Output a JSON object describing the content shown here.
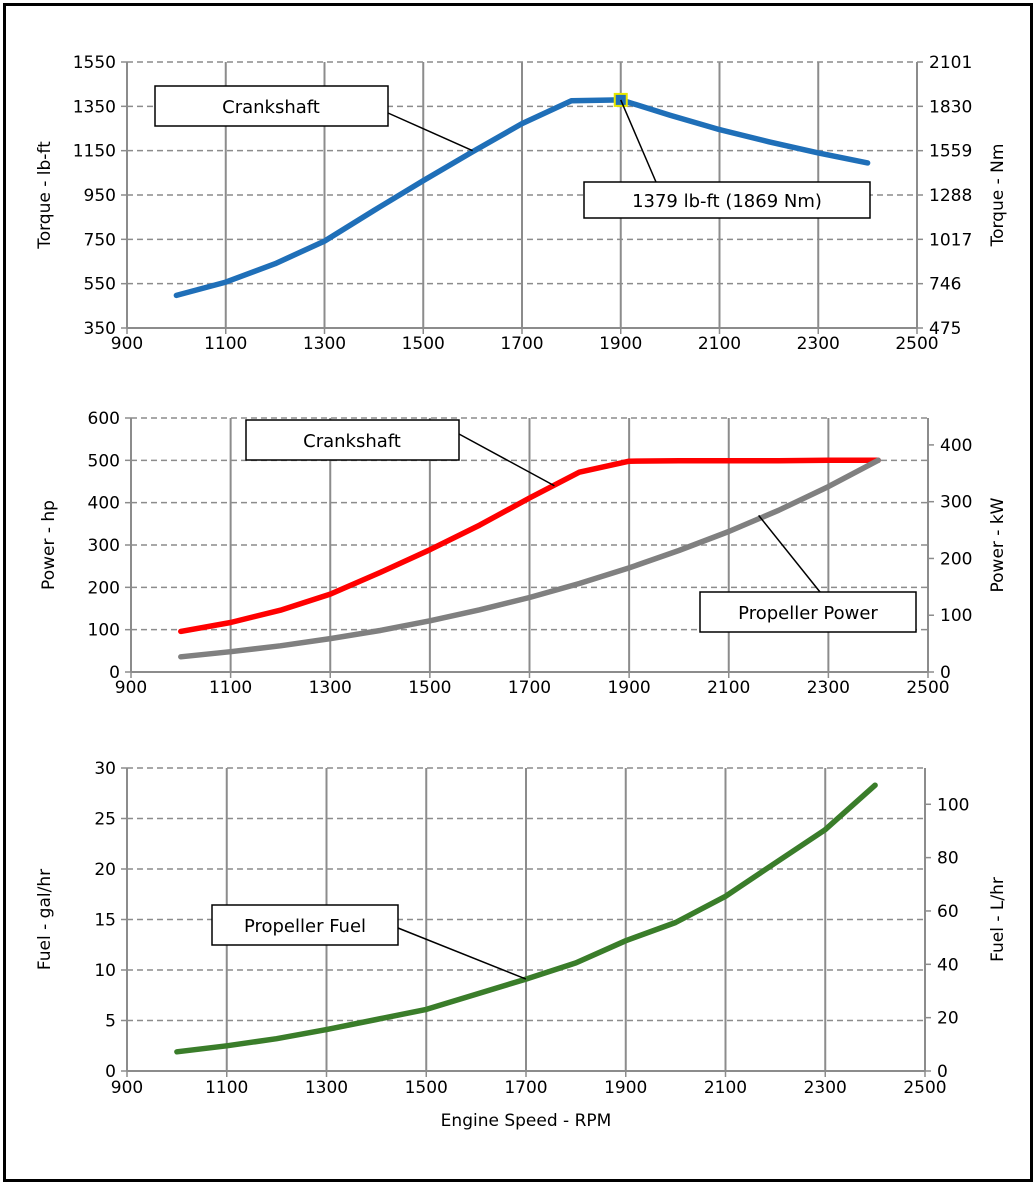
{
  "colors": {
    "torque": "#1f6fb8",
    "crank_power": "#ff0000",
    "prop_power": "#808080",
    "fuel": "#3a7d2a",
    "marker_fill": "#1f6fb8",
    "marker_edge": "#e8e800"
  },
  "chart_data": [
    {
      "type": "line",
      "xlabel": "",
      "ylabel": "Torque - lb-ft",
      "ylabel_right": "Torque - Nm",
      "xlim": [
        900,
        2500
      ],
      "ylim": [
        350,
        1550
      ],
      "xticks": [
        "900",
        "1100",
        "1300",
        "1500",
        "1700",
        "1900",
        "2100",
        "2300",
        "2500"
      ],
      "yticks": [
        "350",
        "550",
        "750",
        "950",
        "1150",
        "1350",
        "1550"
      ],
      "yticks_right": [
        "475",
        "746",
        "1017",
        "1288",
        "1559",
        "1830",
        "2101"
      ],
      "grid": true,
      "series": [
        {
          "name": "Crankshaft",
          "color": "#1f6fb8",
          "x": [
            1000,
            1100,
            1200,
            1300,
            1400,
            1500,
            1600,
            1700,
            1800,
            1900,
            2000,
            2100,
            2200,
            2300,
            2400
          ],
          "y": [
            497,
            557,
            640,
            742,
            880,
            1015,
            1145,
            1272,
            1375,
            1379,
            1310,
            1245,
            1190,
            1140,
            1095
          ]
        }
      ],
      "annotations": [
        {
          "text": "Crankshaft",
          "points_at": [
            1600,
            1150
          ]
        },
        {
          "text": "1379 lb-ft (1869 Nm)",
          "points_at": [
            1900,
            1379
          ]
        }
      ],
      "marker": {
        "x": 1900,
        "y": 1379
      }
    },
    {
      "type": "line",
      "xlabel": "",
      "ylabel": "Power - hp",
      "ylabel_right": "Power - kW",
      "xlim": [
        900,
        2500
      ],
      "ylim": [
        0,
        600
      ],
      "ylim_right": [
        0,
        447.4
      ],
      "xticks": [
        "900",
        "1100",
        "1300",
        "1500",
        "1700",
        "1900",
        "2100",
        "2300",
        "2500"
      ],
      "yticks": [
        "0",
        "100",
        "200",
        "300",
        "400",
        "500",
        "600"
      ],
      "yticks_right": [
        "0",
        "100",
        "200",
        "300",
        "400"
      ],
      "grid": true,
      "series": [
        {
          "name": "Crankshaft",
          "color": "#ff0000",
          "x": [
            1000,
            1100,
            1200,
            1300,
            1400,
            1500,
            1600,
            1700,
            1800,
            1900,
            2000,
            2100,
            2200,
            2300,
            2400
          ],
          "y": [
            96,
            117,
            146,
            184,
            235,
            289,
            347,
            411,
            472,
            498,
            499,
            499,
            499,
            500,
            500
          ]
        },
        {
          "name": "Propeller Power",
          "color": "#808080",
          "x": [
            1000,
            1100,
            1200,
            1300,
            1400,
            1500,
            1600,
            1700,
            1800,
            1900,
            2000,
            2100,
            2200,
            2300,
            2400
          ],
          "y": [
            36,
            48,
            62,
            79,
            98,
            121,
            147,
            176,
            209,
            246,
            287,
            332,
            382,
            438,
            500
          ]
        }
      ],
      "annotations": [
        {
          "text": "Crankshaft",
          "points_at": [
            1750,
            440
          ]
        },
        {
          "text": "Propeller Power",
          "points_at": [
            2160,
            370
          ]
        }
      ]
    },
    {
      "type": "line",
      "xlabel": "Engine Speed - RPM",
      "ylabel": "Fuel - gal/hr",
      "ylabel_right": "Fuel - L/hr",
      "xlim": [
        900,
        2500
      ],
      "ylim": [
        0,
        30
      ],
      "ylim_right": [
        0,
        113.6
      ],
      "xticks": [
        "900",
        "1100",
        "1300",
        "1500",
        "1700",
        "1900",
        "2100",
        "2300",
        "2500"
      ],
      "yticks": [
        "0",
        "5",
        "10",
        "15",
        "20",
        "25",
        "30"
      ],
      "yticks_right": [
        "0",
        "20",
        "40",
        "60",
        "80",
        "100"
      ],
      "grid": true,
      "series": [
        {
          "name": "Propeller Fuel",
          "color": "#3a7d2a",
          "x": [
            1000,
            1100,
            1200,
            1300,
            1400,
            1500,
            1600,
            1700,
            1800,
            1900,
            2000,
            2100,
            2200,
            2300,
            2400
          ],
          "y": [
            1.9,
            2.5,
            3.2,
            4.1,
            5.1,
            6.1,
            7.6,
            9.1,
            10.7,
            12.9,
            14.7,
            17.3,
            20.6,
            23.9,
            28.3
          ]
        }
      ],
      "annotations": [
        {
          "text": "Propeller Fuel",
          "points_at": [
            1700,
            9.1
          ]
        }
      ]
    }
  ]
}
